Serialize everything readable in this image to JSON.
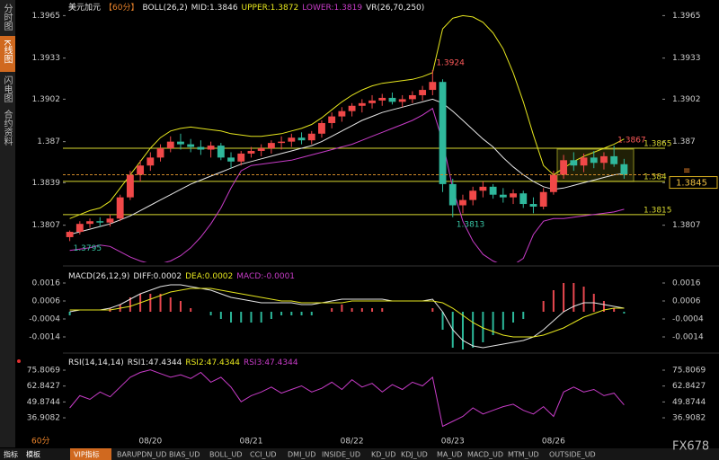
{
  "ui": {
    "sidebar": [
      "分时图",
      "K线图",
      "闪电图",
      "合约资料"
    ],
    "period_label": "60分",
    "brand": "FX678",
    "tabs": [
      "指标",
      "模板",
      "VIP指标",
      "BARUPDN_UD",
      "BIAS_UD",
      "BOLL_UD",
      "CCI_UD",
      "DMI_UD",
      "INSIDE_UD",
      "KD_UD",
      "KDJ_UD",
      "MA_UD",
      "MACD_UD",
      "MTM_UD",
      "OUTSIDE_UD"
    ]
  },
  "chart_data": [
    {
      "type": "candlestick",
      "title": "美元加元",
      "period": "【60分】",
      "indicator": "BOLL(26,2)",
      "extra": "VR(26,70,250)",
      "up_color": "#f04848",
      "down_color": "#2fb89c",
      "categories": [
        null,
        null,
        null,
        null,
        null,
        null,
        null,
        null,
        "08/20",
        null,
        null,
        null,
        null,
        null,
        null,
        null,
        null,
        null,
        "08/21",
        null,
        null,
        null,
        null,
        null,
        null,
        null,
        null,
        null,
        "08/22",
        null,
        null,
        null,
        null,
        null,
        null,
        null,
        null,
        null,
        "08/23",
        null,
        null,
        null,
        null,
        null,
        null,
        null,
        null,
        null,
        "08/26",
        null,
        null,
        null,
        null,
        null,
        null,
        null
      ],
      "open": [
        1.3798,
        1.3802,
        1.3808,
        1.381,
        1.3809,
        1.3812,
        1.3828,
        1.3845,
        1.3852,
        1.3858,
        1.3865,
        1.387,
        1.3868,
        1.3866,
        1.3864,
        1.3867,
        1.3858,
        1.3855,
        1.3861,
        1.3863,
        1.3865,
        1.3869,
        1.387,
        1.3873,
        1.3871,
        1.3876,
        1.3884,
        1.3889,
        1.3893,
        1.3897,
        1.3899,
        1.3901,
        1.3903,
        1.39,
        1.3902,
        1.3905,
        1.3909,
        1.3915,
        1.3838,
        1.3822,
        1.3826,
        1.3833,
        1.3836,
        1.383,
        1.3828,
        1.3831,
        1.3823,
        1.3821,
        1.3832,
        1.3845,
        1.3856,
        1.3852,
        1.3858,
        1.3854,
        1.3859,
        1.3853
      ],
      "high": [
        1.3803,
        1.381,
        1.3812,
        1.3813,
        1.3815,
        1.383,
        1.3848,
        1.3856,
        1.3862,
        1.3868,
        1.3874,
        1.3876,
        1.3872,
        1.3871,
        1.387,
        1.3869,
        1.3862,
        1.3863,
        1.3866,
        1.3868,
        1.3871,
        1.3874,
        1.3876,
        1.3877,
        1.3878,
        1.3886,
        1.3892,
        1.3896,
        1.3899,
        1.3902,
        1.3905,
        1.3906,
        1.3907,
        1.3905,
        1.3908,
        1.3912,
        1.3924,
        1.3917,
        1.3842,
        1.383,
        1.3836,
        1.384,
        1.3838,
        1.3835,
        1.3834,
        1.3833,
        1.3828,
        1.3835,
        1.3848,
        1.386,
        1.3862,
        1.3861,
        1.3863,
        1.3862,
        1.3867,
        1.3857
      ],
      "low": [
        1.3795,
        1.38,
        1.3805,
        1.3806,
        1.3806,
        1.381,
        1.3826,
        1.384,
        1.3848,
        1.3855,
        1.3862,
        1.3864,
        1.3862,
        1.386,
        1.3858,
        1.3856,
        1.385,
        1.3852,
        1.3858,
        1.3859,
        1.3861,
        1.3864,
        1.3866,
        1.3868,
        1.3868,
        1.3873,
        1.388,
        1.3885,
        1.3889,
        1.3892,
        1.3895,
        1.3897,
        1.3898,
        1.3896,
        1.3899,
        1.3901,
        1.3905,
        1.3832,
        1.3813,
        1.3816,
        1.3822,
        1.3828,
        1.3827,
        1.3824,
        1.3823,
        1.382,
        1.3816,
        1.3819,
        1.383,
        1.3842,
        1.3848,
        1.3847,
        1.385,
        1.3849,
        1.3851,
        1.3842
      ],
      "close": [
        1.3802,
        1.3808,
        1.381,
        1.3809,
        1.3812,
        1.3828,
        1.3845,
        1.3852,
        1.3858,
        1.3865,
        1.387,
        1.3868,
        1.3866,
        1.3864,
        1.3867,
        1.3858,
        1.3855,
        1.3861,
        1.3863,
        1.3865,
        1.3869,
        1.387,
        1.3873,
        1.3871,
        1.3876,
        1.3884,
        1.3889,
        1.3893,
        1.3897,
        1.3899,
        1.3901,
        1.3903,
        1.39,
        1.3902,
        1.3905,
        1.3909,
        1.3915,
        1.3838,
        1.3822,
        1.3826,
        1.3833,
        1.3836,
        1.383,
        1.3828,
        1.3831,
        1.3823,
        1.3821,
        1.3832,
        1.3845,
        1.3856,
        1.3852,
        1.3858,
        1.3854,
        1.3859,
        1.3853,
        1.3845
      ],
      "series": [
        {
          "label": "MID:1.3846",
          "color": "#e6e6e6",
          "values": [
            1.38,
            1.3802,
            1.3804,
            1.3806,
            1.3808,
            1.3811,
            1.3814,
            1.3818,
            1.3822,
            1.3826,
            1.383,
            1.3834,
            1.3838,
            1.3841,
            1.3844,
            1.3847,
            1.385,
            1.3853,
            1.3855,
            1.3857,
            1.3859,
            1.3861,
            1.3863,
            1.3865,
            1.3867,
            1.387,
            1.3874,
            1.3878,
            1.3882,
            1.3886,
            1.3889,
            1.3892,
            1.3894,
            1.3896,
            1.3898,
            1.39,
            1.3902,
            1.3899,
            1.3893,
            1.3886,
            1.3879,
            1.3872,
            1.3866,
            1.3858,
            1.3851,
            1.3845,
            1.384,
            1.3836,
            1.3834,
            1.3835,
            1.3837,
            1.3839,
            1.3841,
            1.3843,
            1.3845,
            1.3846
          ]
        },
        {
          "label": "UPPER:1.3872",
          "color": "#e6e61e",
          "values": [
            1.3812,
            1.3815,
            1.3818,
            1.382,
            1.3825,
            1.3835,
            1.3845,
            1.3855,
            1.3865,
            1.3873,
            1.3878,
            1.388,
            1.3881,
            1.388,
            1.3879,
            1.3878,
            1.3876,
            1.3875,
            1.3874,
            1.3874,
            1.3875,
            1.3876,
            1.3878,
            1.388,
            1.3883,
            1.3888,
            1.3894,
            1.39,
            1.3905,
            1.3909,
            1.3912,
            1.3914,
            1.3915,
            1.3916,
            1.3917,
            1.3919,
            1.3922,
            1.3955,
            1.3963,
            1.3965,
            1.3964,
            1.396,
            1.3952,
            1.394,
            1.3922,
            1.39,
            1.3875,
            1.3852,
            1.3845,
            1.385,
            1.3855,
            1.3859,
            1.3862,
            1.3865,
            1.3868,
            1.3872
          ]
        },
        {
          "label": "LOWER:1.3819",
          "color": "#c83cc8",
          "values": [
            1.3788,
            1.3789,
            1.379,
            1.3792,
            1.3791,
            1.3787,
            1.3783,
            1.378,
            1.3778,
            1.3778,
            1.378,
            1.3784,
            1.379,
            1.3798,
            1.3808,
            1.382,
            1.3835,
            1.3848,
            1.3852,
            1.3853,
            1.3854,
            1.3855,
            1.3856,
            1.3858,
            1.386,
            1.3862,
            1.3864,
            1.3866,
            1.3868,
            1.3871,
            1.3874,
            1.3877,
            1.388,
            1.3883,
            1.3886,
            1.389,
            1.3895,
            1.387,
            1.3835,
            1.381,
            1.3795,
            1.3785,
            1.378,
            1.3777,
            1.3777,
            1.3782,
            1.38,
            1.381,
            1.3812,
            1.3812,
            1.3813,
            1.3814,
            1.3815,
            1.3816,
            1.3817,
            1.3819
          ]
        }
      ],
      "levels": [
        1.3865,
        1.384,
        1.3815
      ],
      "level_color": "#d8d830",
      "ylim": [
        1.3779,
        1.397
      ],
      "yticks": [
        1.3965,
        1.3933,
        1.3902,
        1.387,
        1.3839,
        1.3807
      ]
    },
    {
      "type": "macd",
      "indicator": "MACD(26,12,9)",
      "up_color": "#e8474f",
      "down_color": "#2cb89a",
      "series": [
        {
          "label": "DIFF:0.0002",
          "color": "#e6e6e6",
          "values": [
            0.0,
            0.0001,
            0.0001,
            0.0001,
            0.0002,
            0.0004,
            0.0007,
            0.001,
            0.0012,
            0.0014,
            0.0015,
            0.0015,
            0.0014,
            0.0013,
            0.0012,
            0.001,
            0.0008,
            0.0007,
            0.0006,
            0.0005,
            0.0005,
            0.0005,
            0.0005,
            0.0004,
            0.0004,
            0.0005,
            0.0006,
            0.0007,
            0.0007,
            0.0007,
            0.0007,
            0.0007,
            0.0006,
            0.0006,
            0.0006,
            0.0006,
            0.0007,
            0.0,
            -0.001,
            -0.0016,
            -0.0019,
            -0.002,
            -0.0019,
            -0.0018,
            -0.0017,
            -0.0016,
            -0.0014,
            -0.001,
            -0.0005,
            0.0,
            0.0003,
            0.0005,
            0.0005,
            0.0004,
            0.0003,
            0.0002
          ]
        },
        {
          "label": "DEA:0.0002",
          "color": "#e6e61e",
          "values": [
            0.0001,
            0.0001,
            0.0001,
            0.0001,
            0.0001,
            0.0002,
            0.0003,
            0.0005,
            0.0007,
            0.0009,
            0.0011,
            0.0012,
            0.0013,
            0.0013,
            0.0013,
            0.0012,
            0.0011,
            0.001,
            0.0009,
            0.0008,
            0.0007,
            0.0006,
            0.0006,
            0.0005,
            0.0005,
            0.0005,
            0.0005,
            0.0005,
            0.0006,
            0.0006,
            0.0006,
            0.0006,
            0.0006,
            0.0006,
            0.0006,
            0.0006,
            0.0006,
            0.0005,
            0.0002,
            -0.0002,
            -0.0006,
            -0.0009,
            -0.0011,
            -0.0013,
            -0.0014,
            -0.0014,
            -0.0014,
            -0.0013,
            -0.0011,
            -0.0009,
            -0.0006,
            -0.0003,
            -0.0001,
            0.0001,
            0.0002,
            0.0002
          ]
        }
      ],
      "histogram": {
        "label": "MACD:-0.0001",
        "color": "#c83cc8",
        "values": [
          -0.0002,
          0,
          0,
          0,
          0.0002,
          0.0004,
          0.0008,
          0.001,
          0.001,
          0.001,
          0.0008,
          0.0006,
          0.0002,
          0,
          -0.0002,
          -0.0004,
          -0.0006,
          -0.0006,
          -0.0006,
          -0.0006,
          -0.0004,
          -0.0002,
          -0.0002,
          -0.0002,
          -0.0002,
          0,
          0.0002,
          0.0004,
          0.0002,
          0.0002,
          0.0002,
          0.0002,
          0,
          0,
          0,
          0,
          0.0002,
          -0.001,
          -0.002,
          -0.0022,
          -0.002,
          -0.0017,
          -0.0013,
          -0.001,
          -0.0006,
          -0.0004,
          0,
          0.0006,
          0.0012,
          0.0016,
          0.0016,
          0.0014,
          0.001,
          0.0006,
          0.0002,
          -0.0001
        ]
      },
      "ylim": [
        -0.0021,
        0.0021
      ],
      "yticks": [
        0.0016,
        0.0006,
        -0.0004,
        -0.0014
      ]
    },
    {
      "type": "rsi",
      "indicator": "RSI(14,14,14)",
      "series": [
        {
          "label": "RSI1:47.4344",
          "color": "#e6e6e6"
        },
        {
          "label": "RSI2:47.4344",
          "color": "#e6e61e"
        },
        {
          "label": "RSI3:47.4344",
          "color": "#c83cc8"
        }
      ],
      "values": [
        45,
        55,
        52,
        58,
        54,
        62,
        70,
        74,
        76,
        73,
        70,
        72,
        69,
        74,
        66,
        70,
        62,
        50,
        55,
        58,
        62,
        57,
        60,
        63,
        58,
        61,
        66,
        60,
        68,
        62,
        65,
        58,
        64,
        60,
        66,
        63,
        70,
        30,
        34,
        38,
        45,
        40,
        43,
        46,
        48,
        43,
        40,
        46,
        38,
        58,
        62,
        58,
        60,
        55,
        57,
        47.4344
      ],
      "ylim": [
        27.4,
        84.6
      ],
      "yticks": [
        75.8069,
        62.8427,
        49.8744,
        36.9082
      ]
    }
  ]
}
